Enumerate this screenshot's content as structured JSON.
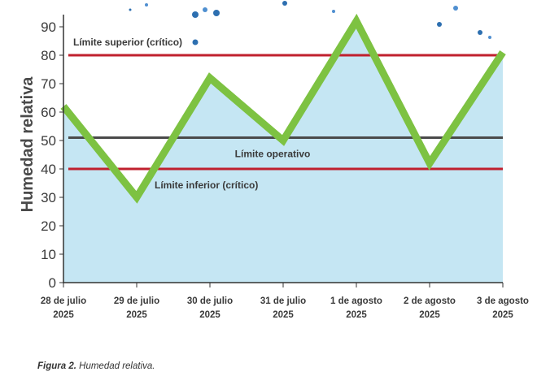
{
  "chart_data": {
    "type": "area",
    "ylabel": "Humedad relativa",
    "ylim": [
      0,
      95
    ],
    "yticks": [
      0,
      10,
      20,
      30,
      40,
      50,
      60,
      70,
      80,
      90
    ],
    "categories": [
      [
        "28 de julio",
        "2025"
      ],
      [
        "29 de julio",
        "2025"
      ],
      [
        "30 de julio",
        "2025"
      ],
      [
        "31 de julio",
        "2025"
      ],
      [
        "1 de agosto",
        "2025"
      ],
      [
        "2 de agosto",
        "2025"
      ],
      [
        "3 de agosto",
        "2025"
      ]
    ],
    "values": [
      62,
      30,
      72,
      50,
      92,
      42,
      81
    ],
    "reference_lines": [
      {
        "label": "Límite superior (crítico)",
        "value": 80,
        "color": "#c0202e"
      },
      {
        "label": "Límite operativo",
        "value": 51,
        "color": "#4a4a4a"
      },
      {
        "label": "Límite inferior (crítico)",
        "value": 40,
        "color": "#c0202e"
      }
    ],
    "colors": {
      "line": "#7dc242",
      "fill": "#c5e6f3",
      "axis": "#333333"
    },
    "grid": false
  },
  "caption": {
    "figure": "Figura 2.",
    "text": "Humedad relativa."
  }
}
